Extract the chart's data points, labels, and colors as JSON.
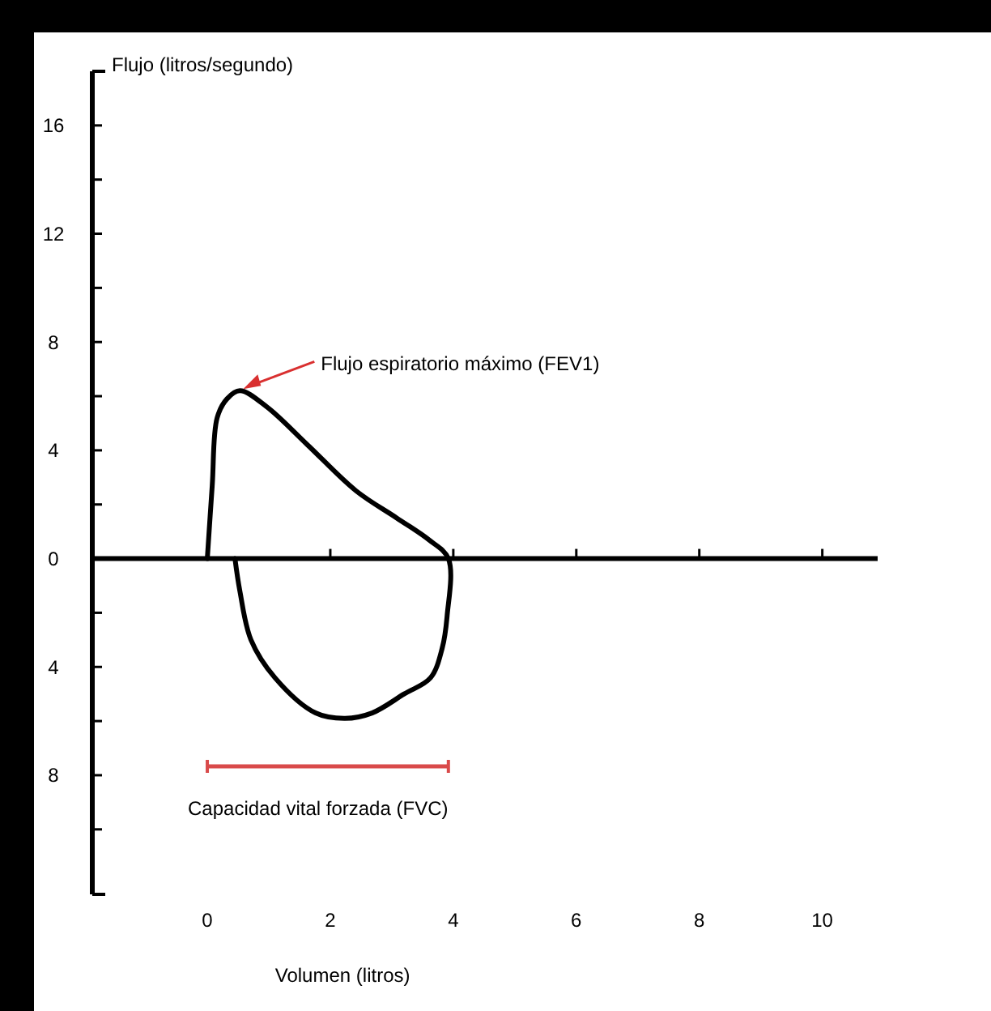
{
  "chart_data": {
    "type": "line",
    "ylabel": "Flujo (litros/segundo)",
    "xlabel": "Volumen (litros)",
    "xlim": [
      -1.87,
      10.9
    ],
    "ylim": [
      -12.4,
      18
    ],
    "xticks": [
      0,
      2,
      4,
      6,
      8,
      10
    ],
    "yticks": [
      16,
      {
        "value": 14,
        "label": null
      },
      12,
      {
        "value": 10,
        "label": null
      },
      8,
      {
        "value": 6,
        "label": null
      },
      4,
      {
        "value": 2,
        "label": null
      },
      0,
      {
        "value": -2,
        "label": null
      },
      {
        "value": -4,
        "label": "4"
      },
      {
        "value": -6,
        "label": null
      },
      {
        "value": -8,
        "label": "8"
      },
      {
        "value": -10,
        "label": null
      }
    ],
    "marker": "none",
    "line_style": "solid",
    "series": [
      {
        "color": "#000000",
        "x": [
          0,
          0.08,
          0.16,
          0.32,
          0.53,
          0.97,
          1.63,
          2.42,
          3.08,
          3.6,
          3.92,
          3.9,
          3.82,
          3.63,
          3.2,
          2.68,
          2.24,
          1.76,
          1.1,
          0.71,
          0.53,
          0.45
        ],
        "values": [
          0,
          2.7,
          5.2,
          5.9,
          6.2,
          5.6,
          4.2,
          2.5,
          1.5,
          0.7,
          0,
          -2.1,
          -3.3,
          -4.4,
          -5,
          -5.7,
          -5.9,
          -5.7,
          -4.4,
          -3,
          -1.2,
          0
        ]
      }
    ],
    "annotations": [
      {
        "text": "Flujo espiratorio máximo (FEV1)",
        "x": 0.53,
        "y": 6.2
      },
      "Capacidad vital forzada (FVC)"
    ]
  }
}
